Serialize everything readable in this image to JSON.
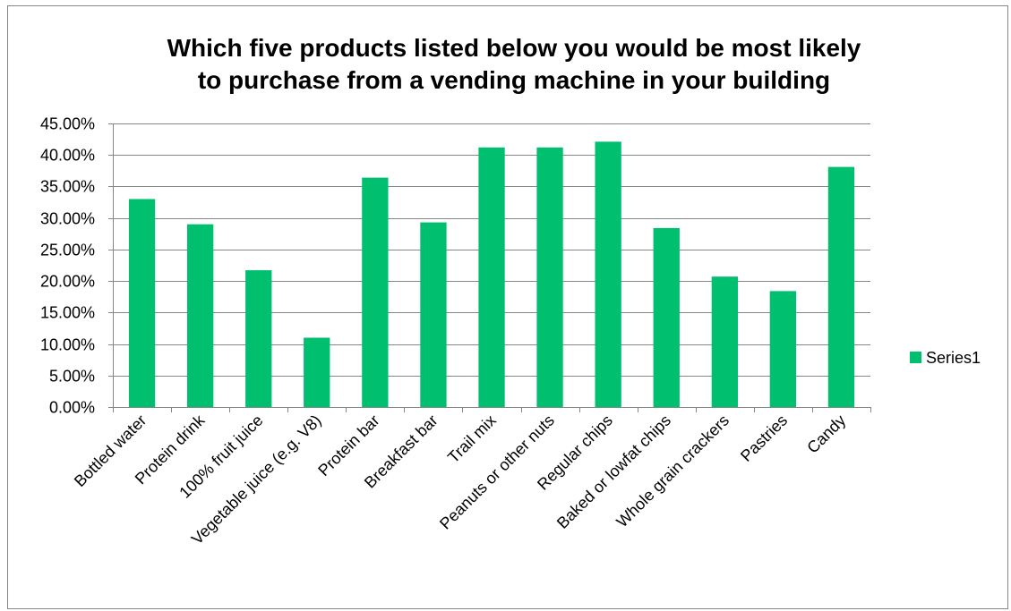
{
  "chart_data": {
    "type": "bar",
    "title_lines": [
      "Which five products listed below you would be most likely",
      "to purchase from a vending machine in your building"
    ],
    "categories": [
      "Bottled water",
      "Protein drink",
      "100% fruit juice",
      "Vegetable juice (e.g. V8)",
      "Protein bar",
      "Breakfast bar",
      "Trail mix",
      "Peanuts or other nuts",
      "Regular chips",
      "Baked or lowfat chips",
      "Whole grain crackers",
      "Pastries",
      "Candy"
    ],
    "series": [
      {
        "name": "Series1",
        "color": "#00BF6F",
        "values": [
          0.33,
          0.29,
          0.217,
          0.11,
          0.364,
          0.293,
          0.412,
          0.412,
          0.421,
          0.284,
          0.207,
          0.184,
          0.381
        ]
      }
    ],
    "ylim": [
      0,
      0.45
    ],
    "y_ticks": [
      0,
      0.05,
      0.1,
      0.15,
      0.2,
      0.25,
      0.3,
      0.35,
      0.4,
      0.45
    ],
    "y_tick_labels": [
      "0.00%",
      "5.00%",
      "10.00%",
      "15.00%",
      "20.00%",
      "25.00%",
      "30.00%",
      "35.00%",
      "40.00%",
      "45.00%"
    ],
    "xlabel": "",
    "ylabel": "",
    "grid": true,
    "legend_position": "right"
  }
}
